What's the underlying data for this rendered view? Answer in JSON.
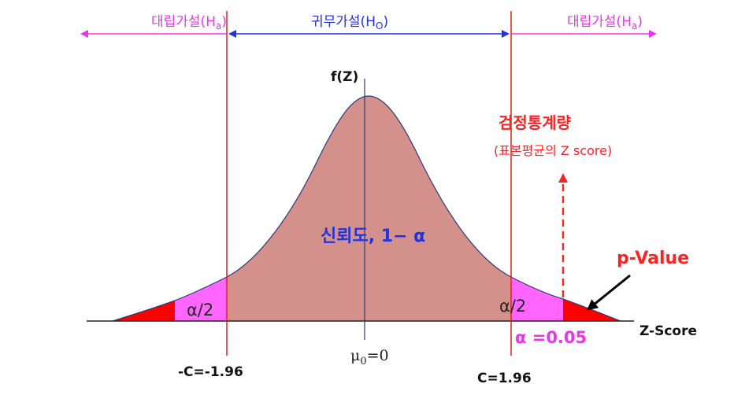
{
  "regions": {
    "left_alternative": {
      "text": "대립가설(H",
      "sub": "a",
      "close": ")"
    },
    "null_hypothesis": {
      "text": "귀무가설(H",
      "sub": "O",
      "close": ")"
    },
    "right_alternative": {
      "text": "대립가설(H",
      "sub": "a",
      "close": ")"
    }
  },
  "curve": {
    "ylabel": "f(Z)",
    "xlabel": "Z-Score",
    "confidence_label": "신뢰도, 1− α",
    "left_tail_label": "α/2",
    "right_tail_label": "α/2",
    "alpha_label": "α =0.05",
    "mean_label": {
      "mu": "μ",
      "sub": "0",
      "rest": "=0"
    },
    "left_critical_label": "-C=-1.96",
    "right_critical_label": "C=1.96",
    "left_critical_value": -1.96,
    "right_critical_value": 1.96
  },
  "annotations": {
    "test_statistic": "검정통계량",
    "test_statistic_sub": "(표본평균의 Z score)",
    "p_value": "p-Value"
  },
  "colors": {
    "magenta": "#ee33ee",
    "blue": "#2233dd",
    "red": "#ff0000",
    "curve_fill": "#d4918c",
    "tail_magenta": "#ff66ff",
    "tail_red": "#ff0000",
    "text_red": "#ff2222",
    "axis": "#222222"
  }
}
